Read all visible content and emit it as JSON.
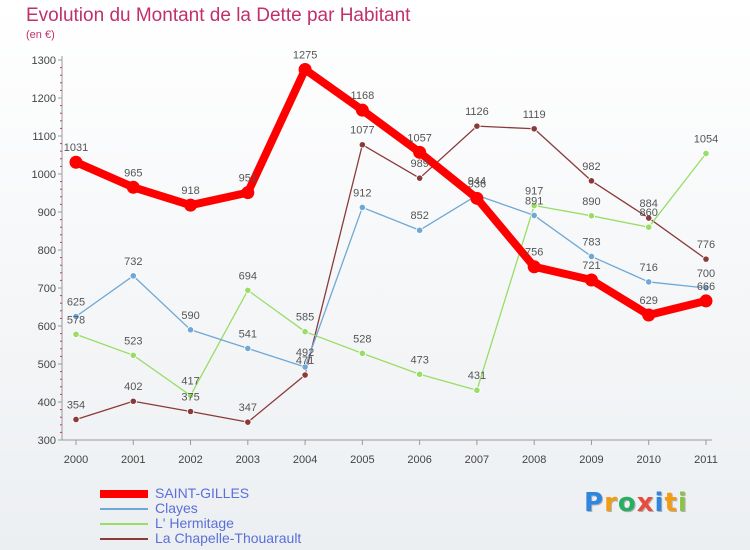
{
  "header": {
    "title": "Evolution du Montant de la Dette par Habitant",
    "subtitle": "(en €)"
  },
  "logo": {
    "letters": [
      "P",
      "r",
      "o",
      "x",
      "i",
      "t",
      "i"
    ],
    "colors": [
      "#2e86de",
      "#f39c12",
      "#27ae60",
      "#e74c3c",
      "#2e86de",
      "#f39c12",
      "#8bc34a"
    ]
  },
  "chart_data": {
    "type": "line",
    "title": "Evolution du Montant de la Dette par Habitant",
    "ylabel": "(en €)",
    "xlabel": "",
    "ylim": [
      300,
      1300
    ],
    "yticks": [
      300,
      400,
      500,
      600,
      700,
      800,
      900,
      1000,
      1100,
      1200,
      1300
    ],
    "categories": [
      "2000",
      "2001",
      "2002",
      "2003",
      "2004",
      "2005",
      "2006",
      "2007",
      "2008",
      "2009",
      "2010",
      "2011"
    ],
    "grid": false,
    "legend": "bottom-left",
    "series": [
      {
        "name": "SAINT-GILLES",
        "color": "#ff0000",
        "values": [
          1031,
          965,
          918,
          951,
          1275,
          1168,
          1057,
          936,
          756,
          721,
          629,
          666
        ]
      },
      {
        "name": "Clayes",
        "color": "#6fa8d6",
        "values": [
          625,
          732,
          590,
          541,
          492,
          912,
          852,
          944,
          891,
          783,
          716,
          700
        ]
      },
      {
        "name": "L' Hermitage",
        "color": "#99dd66",
        "values": [
          578,
          523,
          417,
          694,
          585,
          528,
          473,
          431,
          917,
          890,
          860,
          1054
        ]
      },
      {
        "name": "La Chapelle-Thouarault",
        "color": "#8b3a3a",
        "values": [
          354,
          402,
          375,
          347,
          471,
          1077,
          989,
          1126,
          1119,
          982,
          884,
          776
        ]
      }
    ]
  }
}
